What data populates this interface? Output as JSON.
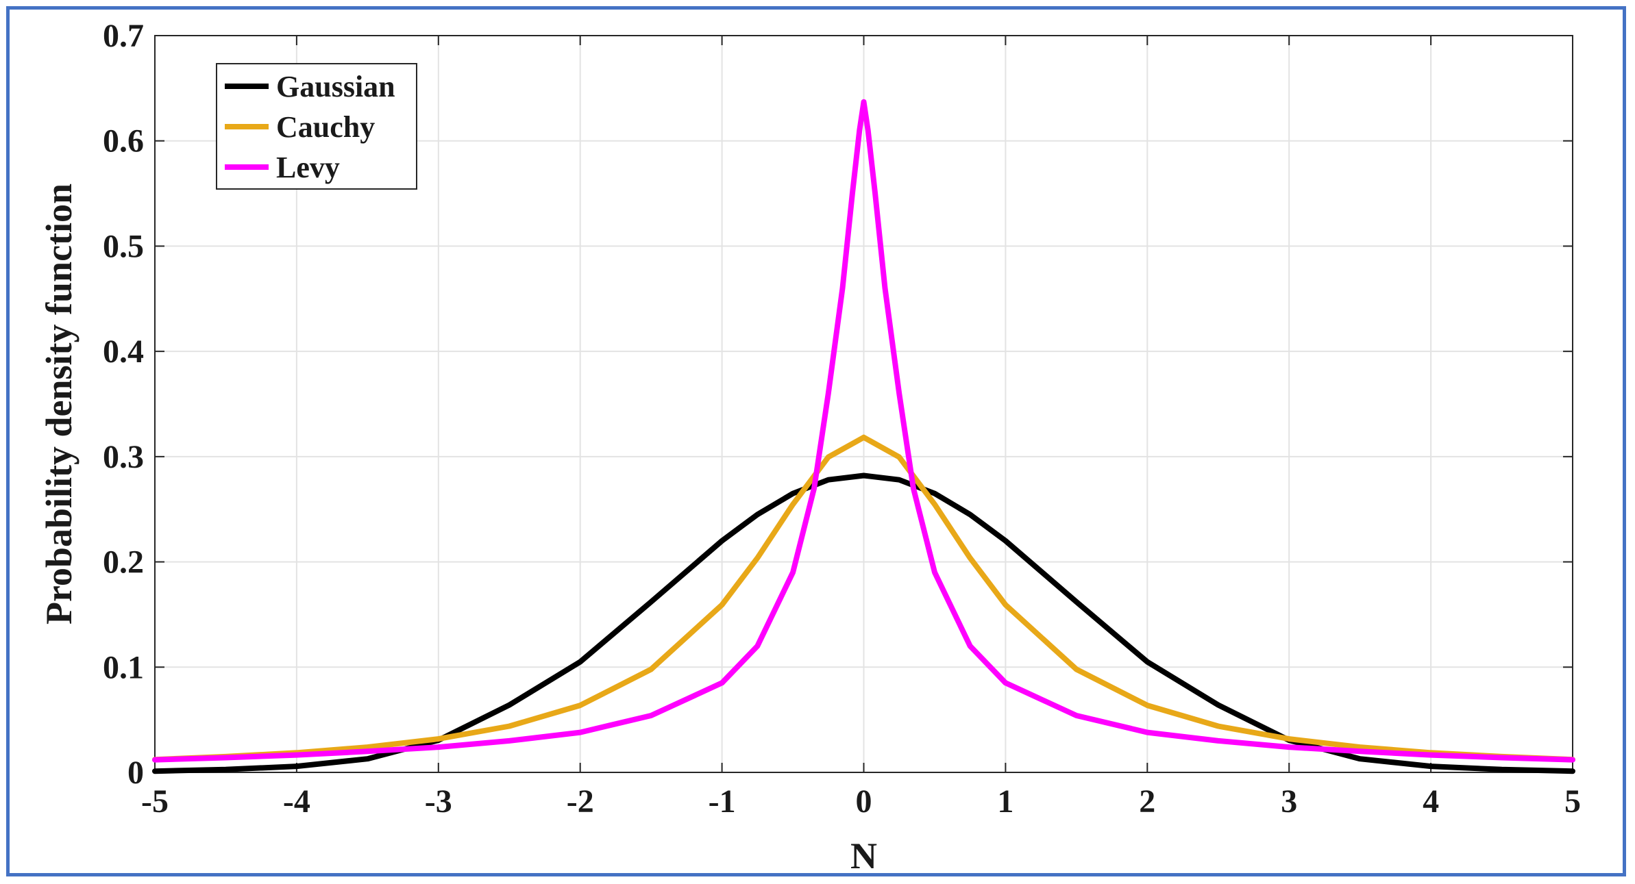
{
  "chart_data": {
    "type": "line",
    "title": "",
    "xlabel": "N",
    "ylabel": "Probability density function",
    "xlim": [
      -5,
      5
    ],
    "ylim": [
      0,
      0.7
    ],
    "xticks": [
      "-5",
      "-4",
      "-3",
      "-2",
      "-1",
      "0",
      "1",
      "2",
      "3",
      "4",
      "5"
    ],
    "yticks": [
      "0",
      "0.1",
      "0.2",
      "0.3",
      "0.4",
      "0.5",
      "0.6",
      "0.7"
    ],
    "grid": true,
    "legend_position": "top-left",
    "series": [
      {
        "name": "Gaussian",
        "color": "#000000",
        "x": [
          -5,
          -4.5,
          -4,
          -3.5,
          -3,
          -2.5,
          -2,
          -1.5,
          -1,
          -0.75,
          -0.5,
          -0.25,
          0,
          0.25,
          0.5,
          0.75,
          1,
          1.5,
          2,
          2.5,
          3,
          3.5,
          4,
          4.5,
          5
        ],
        "y": [
          0.0012,
          0.0027,
          0.0058,
          0.0129,
          0.0306,
          0.064,
          0.105,
          0.162,
          0.22,
          0.245,
          0.265,
          0.278,
          0.282,
          0.278,
          0.265,
          0.245,
          0.22,
          0.162,
          0.105,
          0.064,
          0.0306,
          0.0129,
          0.0058,
          0.0027,
          0.0012
        ]
      },
      {
        "name": "Cauchy",
        "color": "#e8a818",
        "x": [
          -5,
          -4.5,
          -4,
          -3.5,
          -3,
          -2.5,
          -2,
          -1.5,
          -1,
          -0.75,
          -0.5,
          -0.25,
          0,
          0.25,
          0.5,
          0.75,
          1,
          1.5,
          2,
          2.5,
          3,
          3.5,
          4,
          4.5,
          5
        ],
        "y": [
          0.0122,
          0.015,
          0.0187,
          0.024,
          0.0318,
          0.0439,
          0.0637,
          0.0979,
          0.1592,
          0.2037,
          0.2546,
          0.2996,
          0.3183,
          0.2996,
          0.2546,
          0.2037,
          0.1592,
          0.0979,
          0.0637,
          0.0439,
          0.0318,
          0.024,
          0.0187,
          0.015,
          0.0122
        ]
      },
      {
        "name": "Levy",
        "color": "#ff00ff",
        "x": [
          -5,
          -4.5,
          -4,
          -3.5,
          -3,
          -2.5,
          -2,
          -1.5,
          -1,
          -0.75,
          -0.5,
          -0.35,
          -0.25,
          -0.15,
          -0.08,
          -0.03,
          0,
          0.03,
          0.08,
          0.15,
          0.25,
          0.35,
          0.5,
          0.75,
          1,
          1.5,
          2,
          2.5,
          3,
          3.5,
          4,
          4.5,
          5
        ],
        "y": [
          0.012,
          0.014,
          0.0165,
          0.02,
          0.024,
          0.03,
          0.038,
          0.054,
          0.085,
          0.12,
          0.19,
          0.27,
          0.36,
          0.46,
          0.55,
          0.61,
          0.637,
          0.61,
          0.55,
          0.46,
          0.36,
          0.27,
          0.19,
          0.12,
          0.085,
          0.054,
          0.038,
          0.03,
          0.024,
          0.02,
          0.0165,
          0.014,
          0.012
        ]
      }
    ]
  }
}
